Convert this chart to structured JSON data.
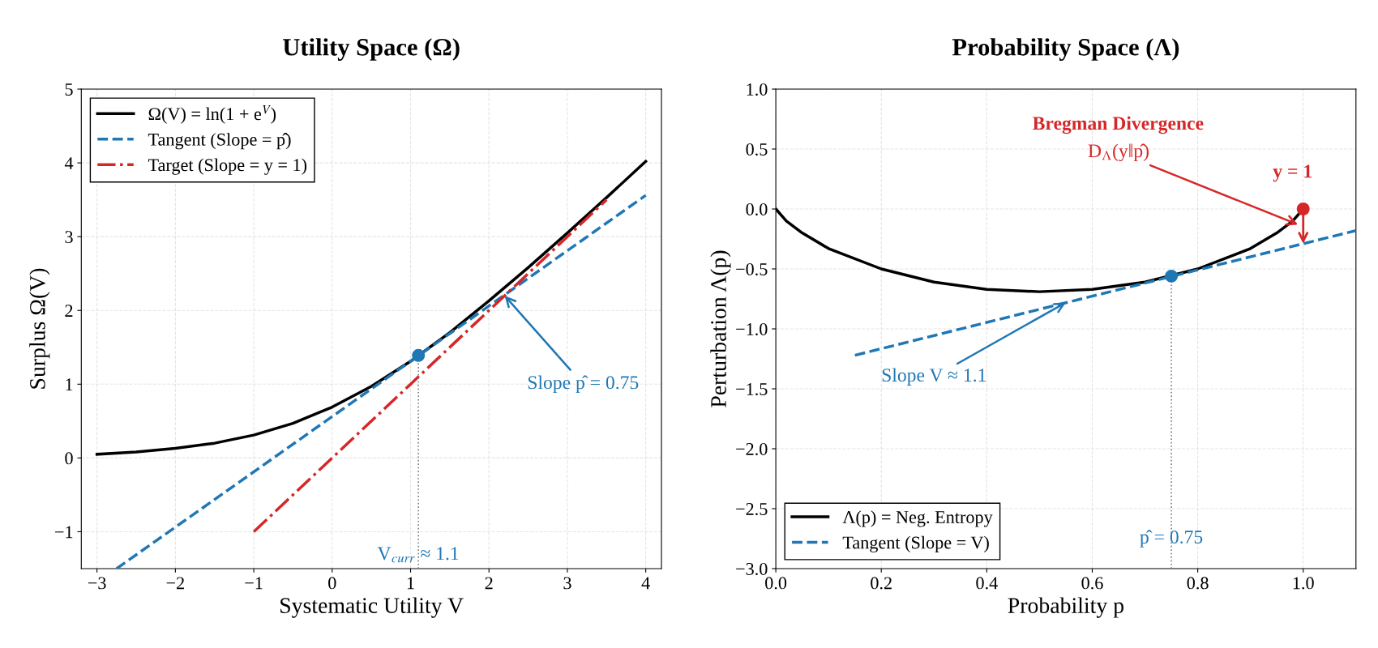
{
  "chart_data": [
    {
      "type": "line",
      "title": "Utility Space (Ω)",
      "xlabel": "Systematic Utility V",
      "ylabel": "Surplus Ω(V)",
      "xlim": [
        -3.2,
        4.2
      ],
      "ylim": [
        -1.5,
        5
      ],
      "xticks": [
        {
          "value": -3,
          "label": "−3"
        },
        {
          "value": -2,
          "label": "−2"
        },
        {
          "value": -1,
          "label": "−1"
        },
        0,
        1,
        2,
        3,
        4
      ],
      "yticks": [
        {
          "value": -1,
          "label": "−1"
        },
        0,
        1,
        2,
        3,
        4,
        5
      ],
      "grid": true,
      "legend": "top left",
      "annotations": [
        {
          "text": "Slope p̂ = 0.75",
          "x": 2.2,
          "y": 2.2
        },
        {
          "text": "V$_{curr}$ ≈ 1.1",
          "x": 1.1,
          "y": -1.5
        }
      ],
      "series": [
        {
          "name": "Ω(V) = ln(1 + e$^{V}$)",
          "color": "#000000",
          "line_style": "solid",
          "x": [
            -3,
            -2.5,
            -2,
            -1.5,
            -1,
            -0.5,
            0,
            0.5,
            1,
            1.5,
            2,
            2.5,
            3,
            3.5,
            4
          ],
          "values": [
            0.05,
            0.08,
            0.13,
            0.2,
            0.31,
            0.47,
            0.69,
            0.97,
            1.31,
            1.7,
            2.13,
            2.58,
            3.05,
            3.53,
            4.02
          ]
        },
        {
          "name": "Tangent (Slope = p̂)",
          "color": "#1f77b4",
          "line_style": "dashed",
          "x": [
            -2.75,
            4
          ],
          "values": [
            -1.5,
            3.56
          ]
        },
        {
          "name": "Target (Slope = y = 1)",
          "color": "#d62728",
          "line_style": "dashdot",
          "x": [
            -1,
            3.5
          ],
          "values": [
            -1,
            3.5
          ]
        },
        {
          "color": "#808080",
          "line_style": "dotted",
          "x": [
            1.1,
            1.1
          ],
          "values": [
            -1.5,
            1.39
          ]
        },
        {
          "color": "#1f77b4",
          "type": "scatter",
          "marker": "circle",
          "x": [
            1.1
          ],
          "values": [
            1.39
          ]
        }
      ]
    },
    {
      "type": "line",
      "title": "Probability Space (Λ)",
      "xlabel": "Probability p",
      "ylabel": "Perturbation Λ(p)",
      "xlim": [
        0,
        1.1
      ],
      "ylim": [
        -3,
        1
      ],
      "xticks": [
        {
          "value": 0,
          "label": "0.0"
        },
        {
          "value": 0.2,
          "label": "0.2"
        },
        {
          "value": 0.4,
          "label": "0.4"
        },
        {
          "value": 0.6,
          "label": "0.6"
        },
        {
          "value": 0.8,
          "label": "0.8"
        },
        {
          "value": 1,
          "label": "1.0"
        }
      ],
      "yticks": [
        {
          "value": -3,
          "label": "−3.0"
        },
        {
          "value": -2.5,
          "label": "−2.5"
        },
        {
          "value": -2,
          "label": "−2.0"
        },
        {
          "value": -1.5,
          "label": "−1.5"
        },
        {
          "value": -1,
          "label": "−1.0"
        },
        {
          "value": -0.5,
          "label": "−0.5"
        },
        {
          "value": 0,
          "label": "0.0"
        },
        {
          "value": 0.5,
          "label": "0.5"
        },
        {
          "value": 1,
          "label": "1.0"
        }
      ],
      "grid": true,
      "legend": "bottom left",
      "annotations": [
        "Bregman Divergence",
        {
          "text": "D$_{Λ}$(y‖p̂)",
          "x": 0.99,
          "y": -0.13
        },
        {
          "text": "y = 1",
          "x": 1.0,
          "y": 0.0
        },
        {
          "text": "Slope V ≈ 1.1",
          "x": 0.55,
          "y": -0.78
        },
        {
          "text": "p̂ = 0.75",
          "x": 0.75,
          "y": -3.0
        }
      ],
      "series": [
        {
          "name": "Λ(p) = Neg. Entropy",
          "color": "#000000",
          "line_style": "solid",
          "x": [
            0,
            0.02,
            0.05,
            0.1,
            0.2,
            0.3,
            0.4,
            0.5,
            0.6,
            0.7,
            0.8,
            0.9,
            0.95,
            0.98,
            1.0
          ],
          "values": [
            0,
            -0.1,
            -0.2,
            -0.33,
            -0.5,
            -0.61,
            -0.67,
            -0.69,
            -0.67,
            -0.61,
            -0.5,
            -0.33,
            -0.2,
            -0.1,
            0
          ]
        },
        {
          "name": "Tangent (Slope = V)",
          "color": "#1f77b4",
          "line_style": "dashed",
          "x": [
            0.15,
            1.1
          ],
          "values": [
            -1.22,
            -0.18
          ]
        },
        {
          "color": "#808080",
          "line_style": "dotted",
          "x": [
            0.75,
            0.75
          ],
          "values": [
            -3,
            -0.56
          ]
        },
        {
          "color": "#1f77b4",
          "type": "scatter",
          "marker": "circle",
          "x": [
            0.75
          ],
          "values": [
            -0.56
          ]
        },
        {
          "color": "#d62728",
          "type": "scatter",
          "marker": "circle",
          "x": [
            1.0
          ],
          "values": [
            0.0
          ]
        }
      ]
    }
  ]
}
